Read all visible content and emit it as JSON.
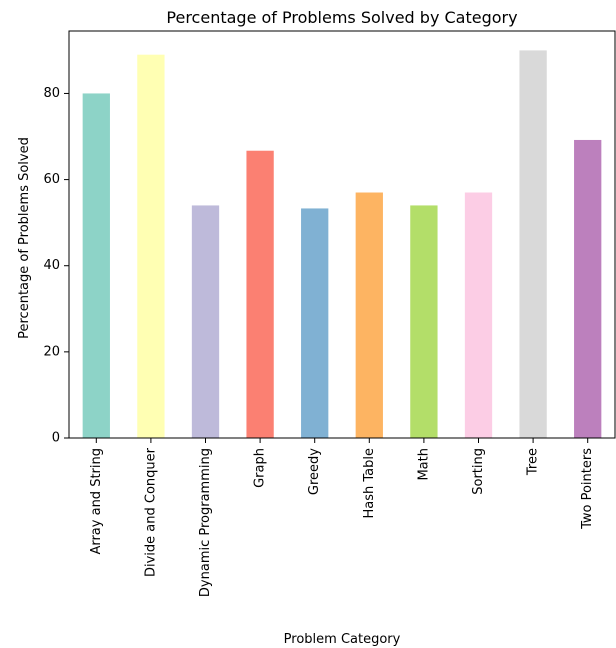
{
  "chart_data": {
    "type": "bar",
    "title": "Percentage of Problems Solved by Category",
    "xlabel": "Problem Category",
    "ylabel": "Percentage of Problems Solved",
    "categories": [
      "Array and String",
      "Divide and Conquer",
      "Dynamic Programming",
      "Graph",
      "Greedy",
      "Hash Table",
      "Math",
      "Sorting",
      "Tree",
      "Two Pointers"
    ],
    "values": [
      80.0,
      89.0,
      54.0,
      66.7,
      53.3,
      57.0,
      54.0,
      57.0,
      90.0,
      69.2
    ],
    "colors": [
      "#8dd3c7",
      "#ffffb3",
      "#bebada",
      "#fb8072",
      "#80b1d3",
      "#fdb462",
      "#b3de69",
      "#fccde5",
      "#d9d9d9",
      "#bc80bd"
    ],
    "ylim": [
      0,
      94.5
    ],
    "yticks": [
      0,
      20,
      40,
      60,
      80
    ],
    "grid": false,
    "legend": "none"
  }
}
